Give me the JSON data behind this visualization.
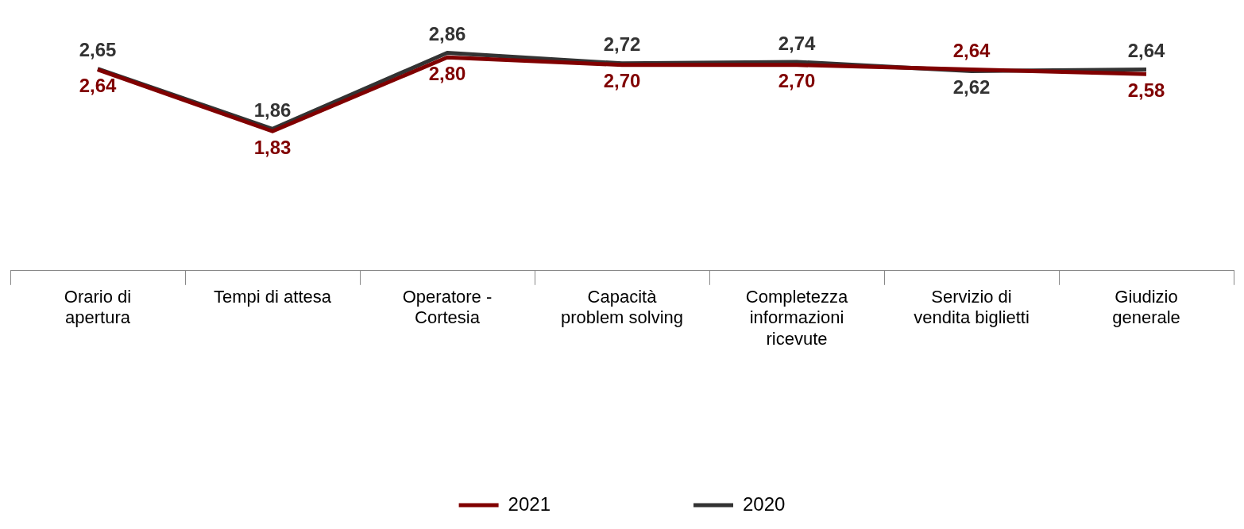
{
  "chart_data": {
    "type": "line",
    "categories": [
      "Orario di apertura",
      "Tempi di attesa",
      "Operatore - Cortesia",
      "Capacità problem solving",
      "Completezza informazioni ricevute",
      "Servizio di vendita biglietti",
      "Giudizio generale"
    ],
    "series": [
      {
        "name": "2021",
        "color": "#800000",
        "values": [
          2.64,
          1.83,
          2.8,
          2.7,
          2.7,
          2.64,
          2.58
        ],
        "value_labels": [
          "2,64",
          "1,83",
          "2,80",
          "2,70",
          "2,70",
          "2,64",
          "2,58"
        ]
      },
      {
        "name": "2020",
        "color": "#333333",
        "values": [
          2.65,
          1.86,
          2.86,
          2.72,
          2.74,
          2.62,
          2.64
        ],
        "value_labels": [
          "2,65",
          "1,86",
          "2,86",
          "2,72",
          "2,74",
          "2,62",
          "2,64"
        ]
      }
    ],
    "tick_labels": "x",
    "legend": "bottom",
    "marker": "none",
    "line_style": "solid"
  }
}
